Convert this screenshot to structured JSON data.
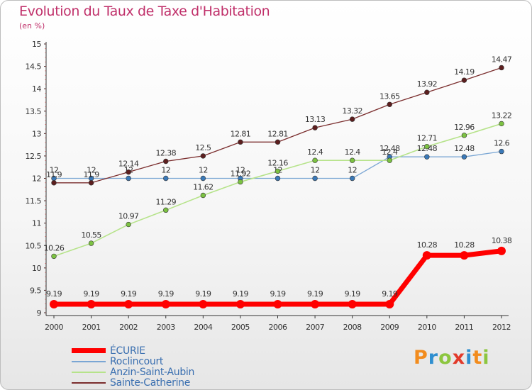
{
  "title": "Evolution du Taux de Taxe d'Habitation",
  "subtitle": "(en %)",
  "logo": {
    "text": "Proxiti",
    "letters": [
      "P",
      "r",
      "o",
      "x",
      "i",
      "t",
      "i"
    ],
    "colors": [
      "#f28c1e",
      "#2f8fd0",
      "#8cc63f",
      "#e23a2a",
      "#2f8fd0",
      "#f28c1e",
      "#8cc63f"
    ]
  },
  "chart_data": {
    "type": "line",
    "title": "Evolution du Taux de Taxe d'Habitation",
    "subtitle": "(en %)",
    "xlabel": "",
    "ylabel": "",
    "x": [
      "2000",
      "2001",
      "2002",
      "2003",
      "2004",
      "2005",
      "2006",
      "2007",
      "2008",
      "2009",
      "2010",
      "2011",
      "2012"
    ],
    "ylim": [
      9,
      15
    ],
    "yticks": [
      "9",
      "9.5",
      "10",
      "10.5",
      "11",
      "11.5",
      "12",
      "12.5",
      "13",
      "13.5",
      "14",
      "14.5",
      "15"
    ],
    "grid": false,
    "legend_position": "bottom-left",
    "series": [
      {
        "name": "ÉCURIE",
        "color": "#ff0000",
        "marker": "#ff0000",
        "width": 7,
        "values": [
          9.19,
          9.19,
          9.19,
          9.19,
          9.19,
          9.19,
          9.19,
          9.19,
          9.19,
          9.19,
          10.28,
          10.28,
          10.38
        ],
        "labels": [
          "9.19",
          "9.19",
          "9.19",
          "9.19",
          "9.19",
          "9.19",
          "9.19",
          "9.19",
          "9.19",
          "9.19",
          "10.28",
          "10.28",
          "10.38"
        ]
      },
      {
        "name": "Roclincourt",
        "color": "#7aa6d4",
        "marker": "#3a79b8",
        "width": 1.3,
        "values": [
          12,
          12,
          12,
          12,
          12,
          12,
          12,
          12,
          12,
          12.48,
          12.48,
          12.48,
          12.6
        ],
        "labels": [
          "12",
          "12",
          "12",
          "12",
          "12",
          "12",
          "12",
          "12",
          "12",
          "12.48",
          "12.48",
          "12.48",
          "12.6"
        ]
      },
      {
        "name": "Anzin-Saint-Aubin",
        "color": "#b6e38a",
        "marker": "#7cc242",
        "width": 1.6,
        "values": [
          10.26,
          10.55,
          10.97,
          11.29,
          11.62,
          11.92,
          12.16,
          12.4,
          12.4,
          12.4,
          12.71,
          12.96,
          13.22
        ],
        "labels": [
          "10.26",
          "10.55",
          "10.97",
          "11.29",
          "11.62",
          "11.92",
          "12.16",
          "12.4",
          "12.4",
          "12.4",
          "12.71",
          "12.96",
          "13.22"
        ]
      },
      {
        "name": "Sainte-Catherine",
        "color": "#7b2e2e",
        "marker": "#5c1e1e",
        "width": 1.3,
        "values": [
          11.9,
          11.9,
          12.14,
          12.38,
          12.5,
          12.81,
          12.81,
          13.13,
          13.32,
          13.65,
          13.92,
          14.19,
          14.47
        ],
        "labels": [
          "11.9",
          "11.9",
          "12.14",
          "12.38",
          "12.5",
          "12.81",
          "12.81",
          "13.13",
          "13.32",
          "13.65",
          "13.92",
          "14.19",
          "14.47"
        ]
      }
    ]
  }
}
